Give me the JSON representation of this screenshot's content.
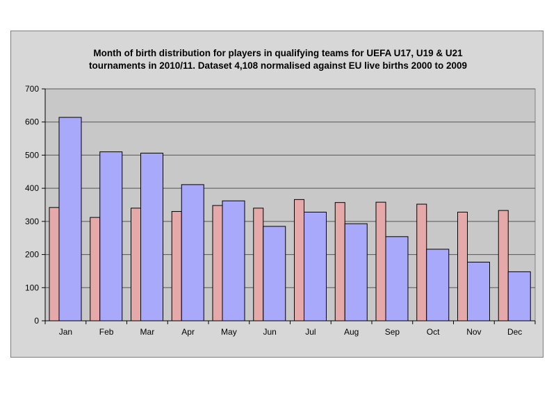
{
  "chart_data": {
    "type": "bar",
    "title_lines": [
      "Month of birth distribution for players in qualifying teams for UEFA U17, U19 & U21",
      "tournaments in 2010/11. Dataset 4,108 normalised against EU live births 2000 to 2009"
    ],
    "xlabel": "",
    "ylabel": "",
    "ylim": [
      0,
      700
    ],
    "yticks": [
      0,
      100,
      200,
      300,
      400,
      500,
      600,
      700
    ],
    "categories": [
      "Jan",
      "Feb",
      "Mar",
      "Apr",
      "May",
      "Jun",
      "Jul",
      "Aug",
      "Sep",
      "Oct",
      "Nov",
      "Dec"
    ],
    "series": [
      {
        "color": "#e6a9a9",
        "values": [
          342,
          312,
          340,
          330,
          348,
          340,
          366,
          357,
          358,
          352,
          328,
          333
        ]
      },
      {
        "color": "#a9a9fb",
        "values": [
          614,
          510,
          506,
          411,
          362,
          285,
          328,
          293,
          254,
          216,
          177,
          148
        ]
      }
    ],
    "grid": true,
    "legend": "none",
    "plot_background": "#c8c8c8",
    "chart_background": "#d7d7d7"
  }
}
